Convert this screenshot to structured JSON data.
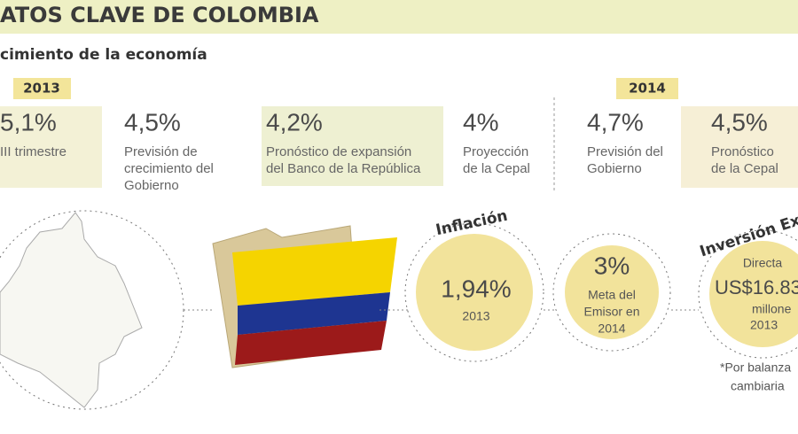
{
  "header": {
    "title": "ATOS CLAVE DE COLOMBIA"
  },
  "growth": {
    "title": "cimiento de la economía",
    "year_2013": "2013",
    "year_2014": "2014",
    "items": [
      {
        "value": "5,1%",
        "lines": [
          "III trimestre"
        ]
      },
      {
        "value": "4,5%",
        "lines": [
          "Previsión de",
          "crecimiento del",
          "Gobierno"
        ]
      },
      {
        "value": "4,2%",
        "lines": [
          "Pronóstico de expansión",
          "del Banco de la República"
        ]
      },
      {
        "value": "4%",
        "lines": [
          "Proyección",
          "de la Cepal"
        ]
      },
      {
        "value": "4,7%",
        "lines": [
          "Previsión del",
          "Gobierno"
        ]
      },
      {
        "value": "4,5%",
        "lines": [
          "Pronóstico",
          "de la Cepal"
        ]
      }
    ]
  },
  "inflation": {
    "title": "Inflación",
    "value": "1,94%",
    "year": "2013"
  },
  "target": {
    "value": "3%",
    "lines": [
      "Meta del",
      "Emisor en",
      "2014"
    ]
  },
  "investment": {
    "title": "Inversión Ext",
    "label": "Directa",
    "value": "US$16.83",
    "unit": "millone",
    "year": "2013"
  },
  "note": [
    "*Por balanza",
    "cambiaria"
  ]
}
